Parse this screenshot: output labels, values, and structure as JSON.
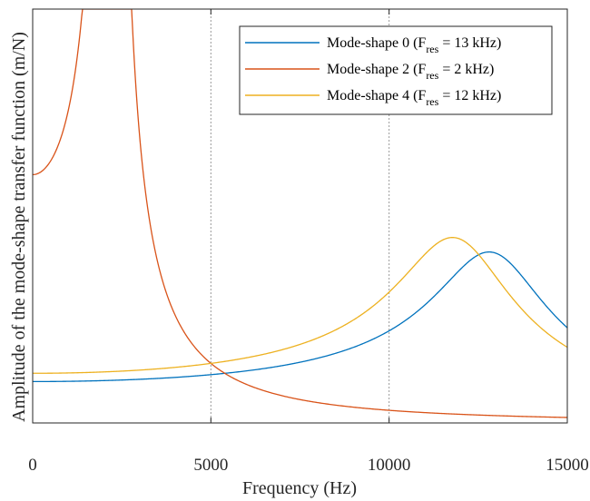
{
  "chart_data": {
    "type": "line",
    "xlabel": "Frequency (Hz)",
    "ylabel": "Amplitude of the mode-shape transfer function (m/N)",
    "xlim": [
      0,
      15000
    ],
    "ylim": [
      0,
      1
    ],
    "xticks": [
      0,
      5000,
      10000,
      15000
    ],
    "xtick_labels": [
      "0",
      "5000",
      "10000",
      "15000"
    ],
    "y_tick_labels_shown": false,
    "grid": "vertical dashed at x ticks",
    "legend_placement": "top-right",
    "series": [
      {
        "name": "Mode-shape 0 (F_res = 13 kHz)",
        "legend_main": "Mode-shape 0 (F",
        "legend_sub": "res",
        "legend_tail": " = 13 kHz)",
        "color": "#0072BD",
        "model": {
          "fres": 13000,
          "Q": 4.1,
          "static": 0.1,
          "cap": 1.0
        },
        "x": [
          0,
          2000,
          4000,
          6000,
          8000,
          10000,
          11000,
          12000,
          12500,
          13000,
          13500,
          14000,
          15000
        ],
        "values": [
          0.1,
          0.105,
          0.12,
          0.142,
          0.18,
          0.246,
          0.299,
          0.363,
          0.391,
          0.405,
          0.394,
          0.363,
          0.273
        ]
      },
      {
        "name": "Mode-shape 2 (F_res = 2 kHz)",
        "legend_main": "Mode-shape 2 (F",
        "legend_sub": "res",
        "legend_tail": " = 2 kHz)",
        "color": "#D95319",
        "model": {
          "fres": 2200,
          "Q": 14,
          "static": 0.6,
          "cap": 1.0
        },
        "x": [
          0,
          1000,
          1500,
          2000,
          2200,
          2500,
          3000,
          4000,
          5000,
          6000,
          8000,
          10000,
          12000,
          15000
        ],
        "values": [
          0.6,
          0.66,
          0.79,
          1.0,
          1.0,
          0.89,
          0.6,
          0.36,
          0.245,
          0.15,
          0.085,
          0.054,
          0.028,
          0.003
        ]
      },
      {
        "name": "Mode-shape 4 (F_res = 12 kHz)",
        "legend_main": "Mode-shape 4 (F",
        "legend_sub": "res",
        "legend_tail": " = 12 kHz)",
        "color": "#EDB120",
        "model": {
          "fres": 12000,
          "Q": 3.7,
          "static": 0.12,
          "cap": 1.0
        },
        "x": [
          0,
          2000,
          4000,
          6000,
          8000,
          10000,
          11000,
          11500,
          12000,
          12500,
          13000,
          14000,
          15000
        ],
        "values": [
          0.12,
          0.125,
          0.137,
          0.16,
          0.205,
          0.295,
          0.368,
          0.408,
          0.44,
          0.418,
          0.371,
          0.293,
          0.232
        ]
      }
    ]
  }
}
